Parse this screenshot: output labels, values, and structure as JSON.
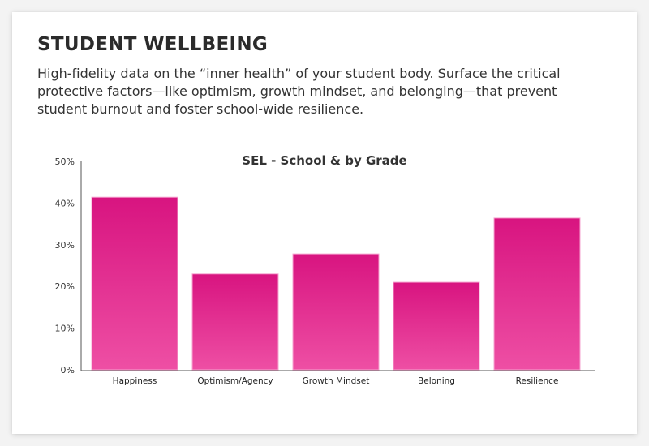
{
  "header": {
    "title": "STUDENT WELLBEING",
    "description": "High-fidelity data on the “inner health” of your student body. Surface the critical protective factors—like optimism, growth mindset, and belonging—that prevent student burnout and foster school-wide resilience."
  },
  "chart_data": {
    "type": "bar",
    "title": "SEL - School & by Grade",
    "categories": [
      "Happiness",
      "Optimism/Agency",
      "Growth Mindset",
      "Beloning",
      "Resilience"
    ],
    "values": [
      41.4,
      23.0,
      27.8,
      21.0,
      36.4
    ],
    "ylim": [
      0,
      50
    ],
    "yticks": [
      "0%",
      "10%",
      "20%",
      "30%",
      "40%",
      "50%"
    ],
    "xlabel": "",
    "ylabel": "",
    "grid": false,
    "colors": {
      "bar_top": "#d81480",
      "bar_bottom": "#ee4fa4"
    }
  }
}
